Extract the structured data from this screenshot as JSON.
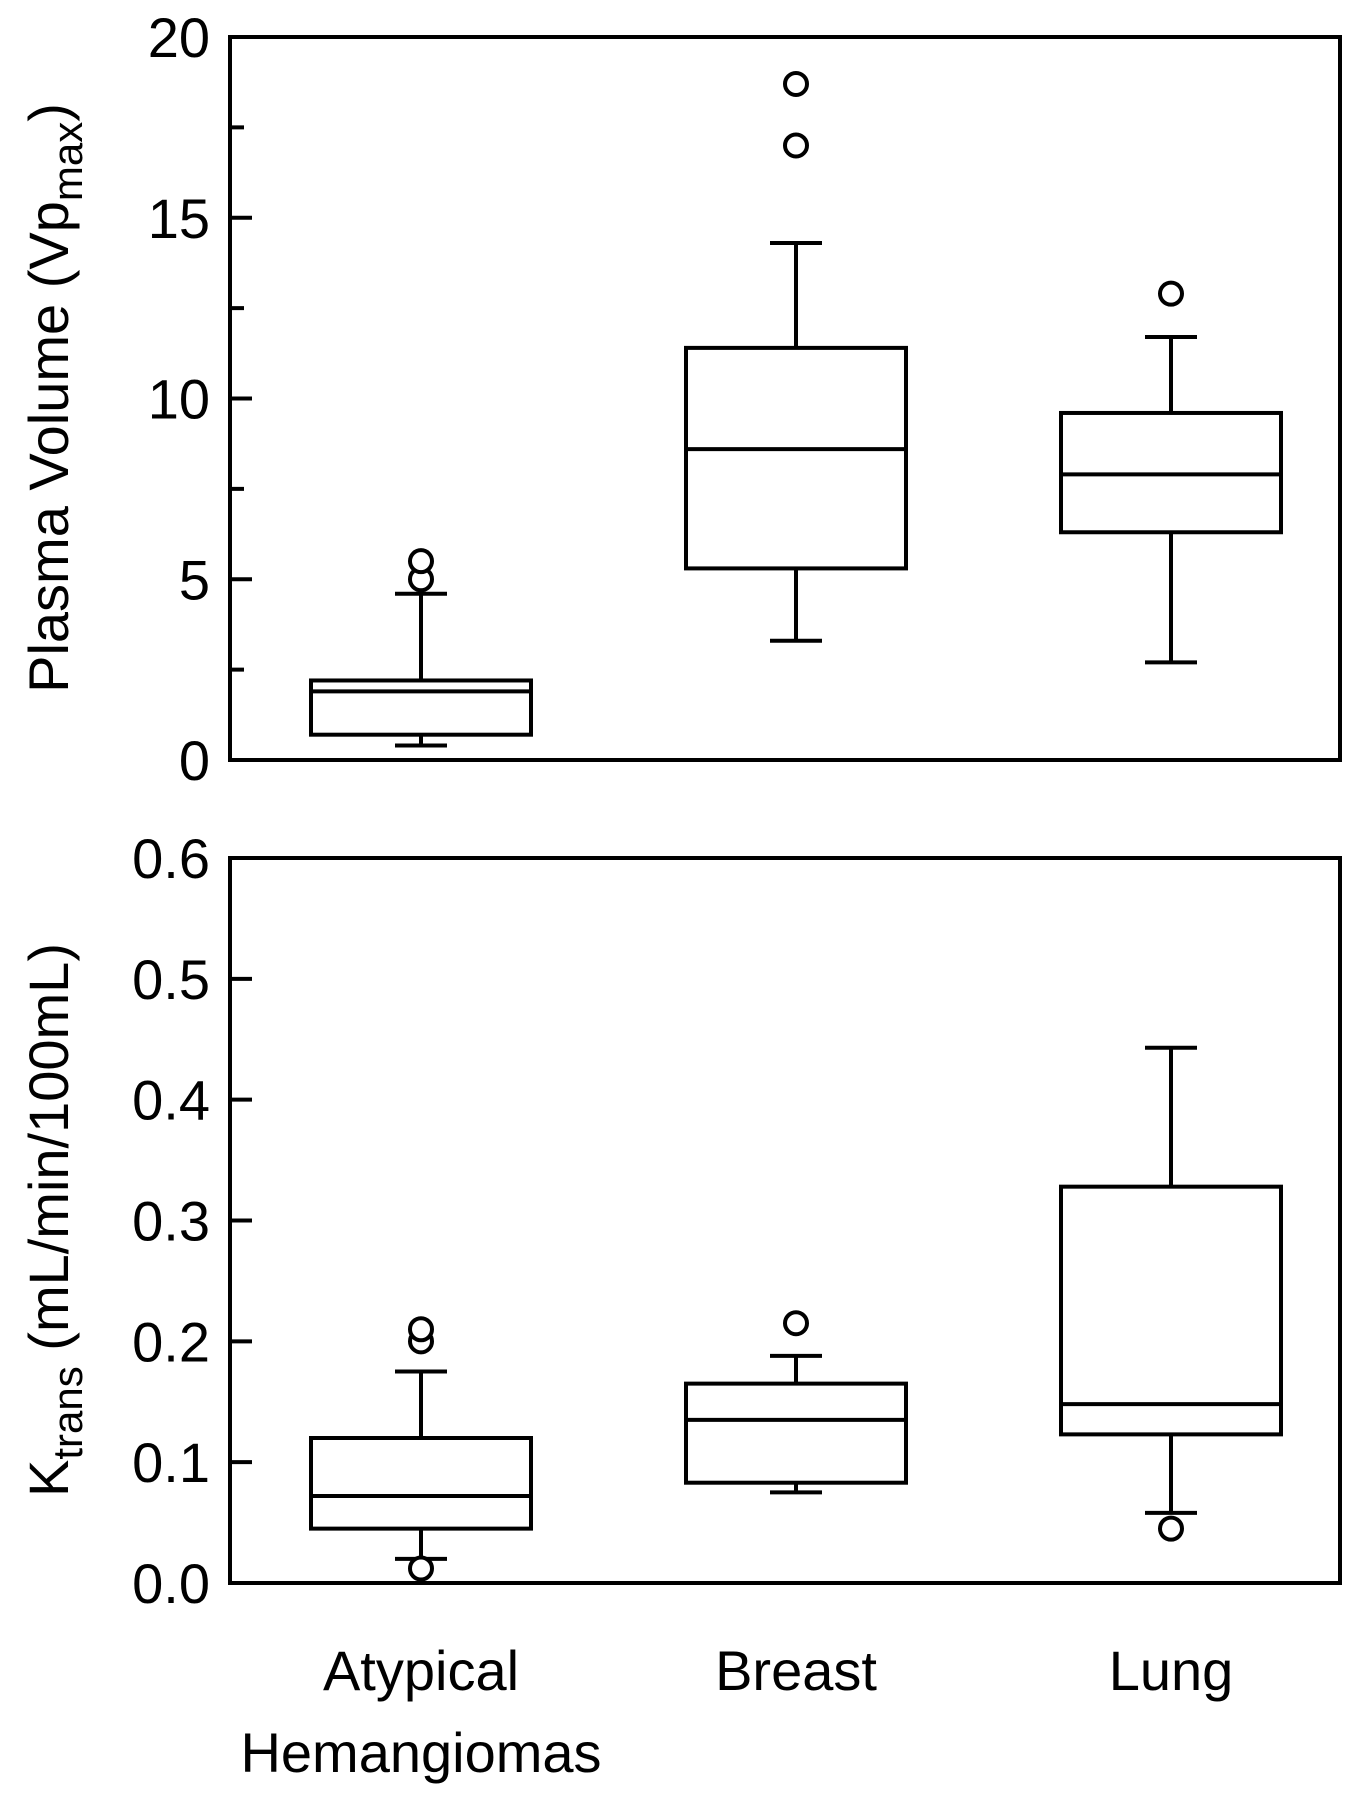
{
  "chart_data": [
    {
      "type": "box",
      "ylabel": {
        "main": "Plasma Volume (Vp",
        "sub": "max",
        "close": ")"
      },
      "ylim": [
        0,
        20
      ],
      "major_ticks": [
        0,
        5,
        10,
        15,
        20
      ],
      "tick_labels": [
        "0",
        "5",
        "10",
        "15",
        "20"
      ],
      "minor_ticks": [
        2.5,
        7.5,
        12.5,
        17.5
      ],
      "grid": false,
      "categories": [
        "Atypical Hemangiomas",
        "Breast",
        "Lung"
      ],
      "boxes": [
        {
          "category": "Atypical Hemangiomas",
          "whisker_low": 0.4,
          "q1": 0.7,
          "median": 1.9,
          "q3": 2.2,
          "whisker_high": 4.6,
          "outliers": [
            5.0,
            5.5
          ]
        },
        {
          "category": "Breast",
          "whisker_low": 3.3,
          "q1": 5.3,
          "median": 8.6,
          "q3": 11.4,
          "whisker_high": 14.3,
          "outliers": [
            17.0,
            18.7
          ]
        },
        {
          "category": "Lung",
          "whisker_low": 2.7,
          "q1": 6.3,
          "median": 7.9,
          "q3": 9.6,
          "whisker_high": 11.7,
          "outliers": [
            12.9
          ]
        }
      ]
    },
    {
      "type": "box",
      "ylabel": {
        "main": "K",
        "sub": "trans",
        "rest": " (mL/min/100mL)"
      },
      "ylim": [
        0,
        0.6
      ],
      "major_ticks": [
        0.0,
        0.1,
        0.2,
        0.3,
        0.4,
        0.5,
        0.6
      ],
      "tick_labels": [
        "0.0",
        "0.1",
        "0.2",
        "0.3",
        "0.4",
        "0.5",
        "0.6"
      ],
      "minor_ticks": [],
      "grid": false,
      "categories": [
        "Atypical Hemangiomas",
        "Breast",
        "Lung"
      ],
      "boxes": [
        {
          "category": "Atypical Hemangiomas",
          "whisker_low": 0.02,
          "q1": 0.045,
          "median": 0.072,
          "q3": 0.12,
          "whisker_high": 0.175,
          "outliers": [
            0.012,
            0.2,
            0.21
          ]
        },
        {
          "category": "Breast",
          "whisker_low": 0.075,
          "q1": 0.083,
          "median": 0.135,
          "q3": 0.165,
          "whisker_high": 0.188,
          "outliers": [
            0.215
          ]
        },
        {
          "category": "Lung",
          "whisker_low": 0.058,
          "q1": 0.123,
          "median": 0.148,
          "q3": 0.328,
          "whisker_high": 0.443,
          "outliers": [
            0.045
          ]
        }
      ]
    }
  ],
  "x_axis": {
    "labels": [
      {
        "lines": [
          "Atypical",
          "Hemangiomas"
        ]
      },
      {
        "lines": [
          "Breast"
        ]
      },
      {
        "lines": [
          "Lung"
        ]
      }
    ]
  }
}
